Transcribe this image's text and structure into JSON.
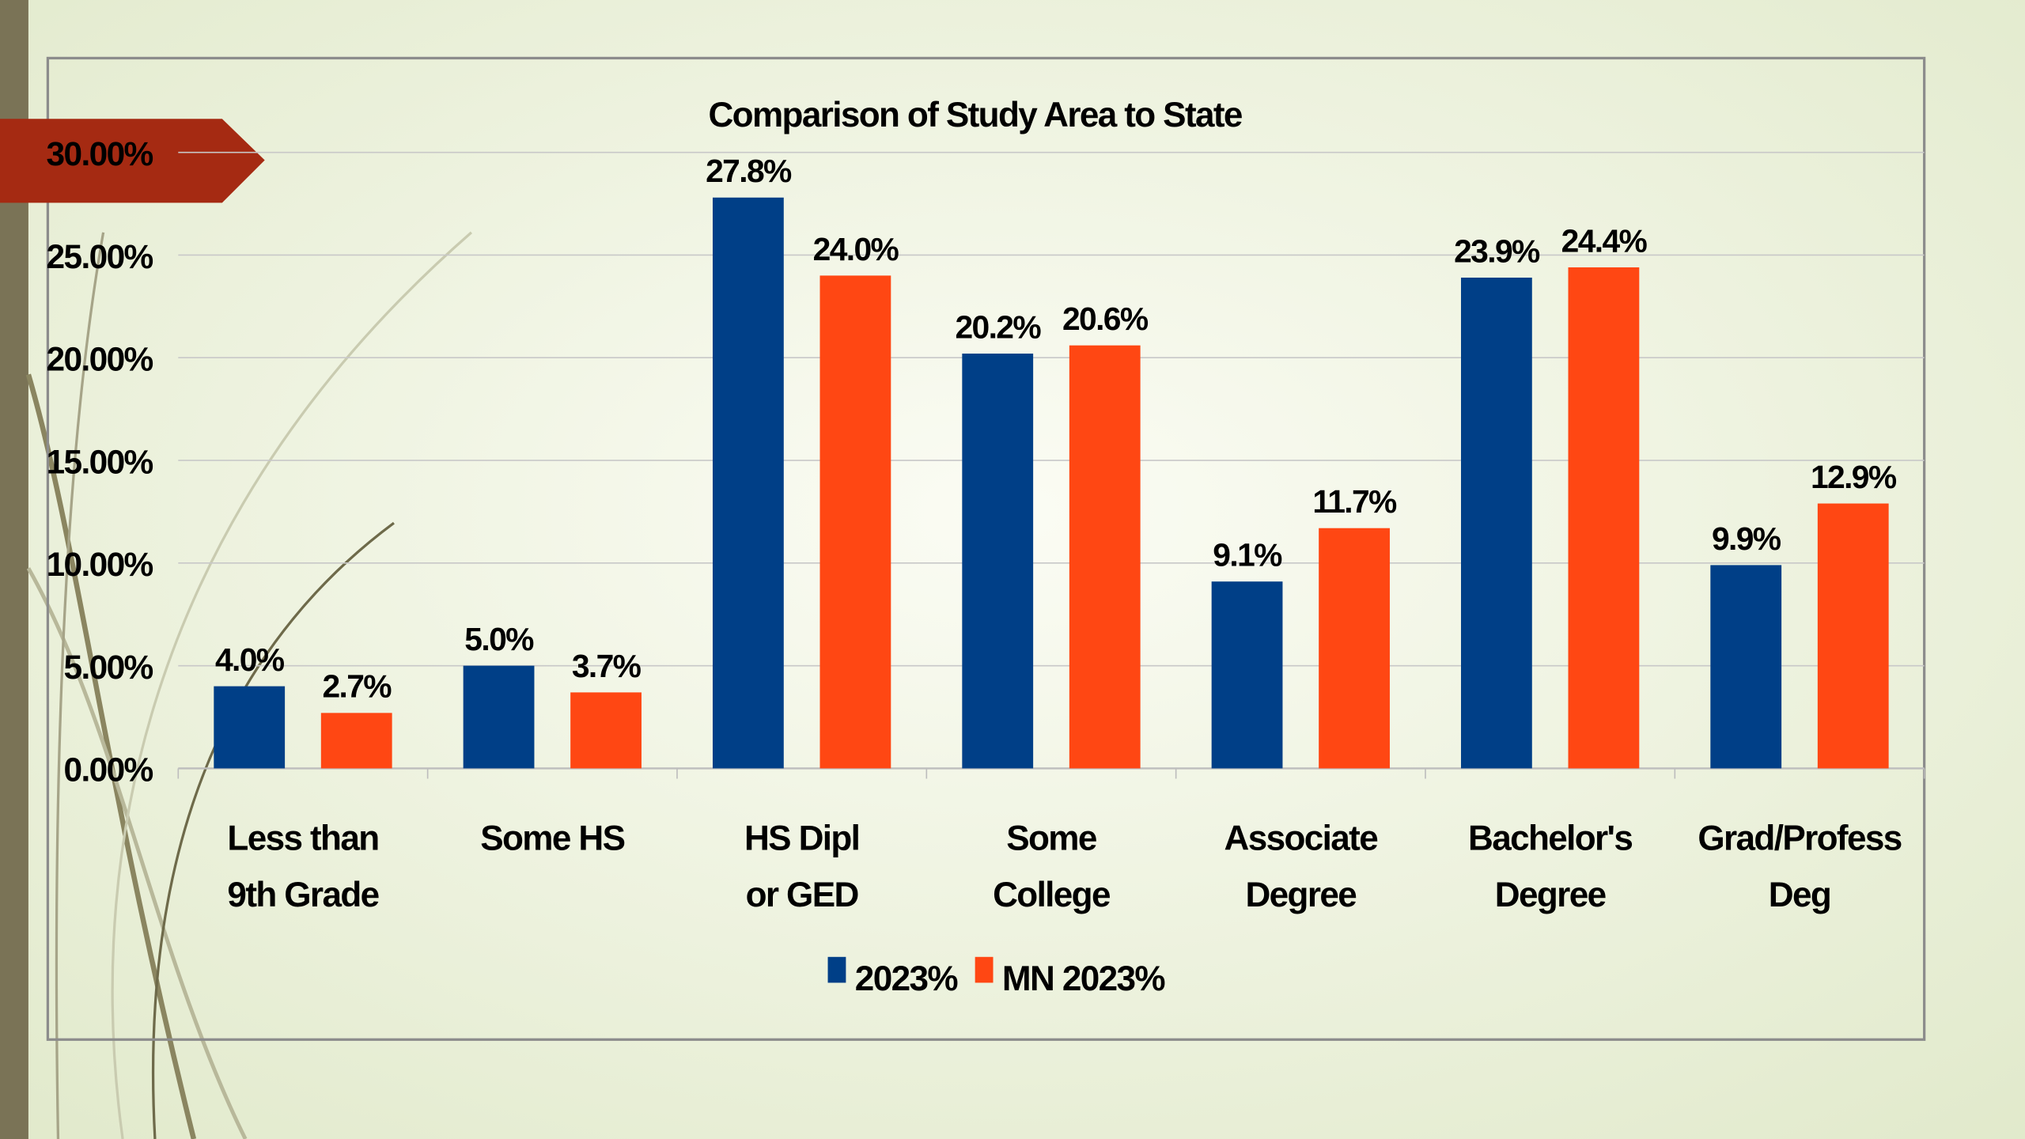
{
  "chart_data": {
    "type": "bar",
    "title": "Comparison of Study Area to State",
    "categories": [
      [
        "Less than",
        "9th Grade"
      ],
      [
        "Some HS"
      ],
      [
        "HS Dipl",
        "or GED"
      ],
      [
        "Some",
        "College"
      ],
      [
        "Associate",
        "Degree"
      ],
      [
        "Bachelor's",
        "Degree"
      ],
      [
        "Grad/Profess",
        "Deg"
      ]
    ],
    "series": [
      {
        "name": "2023%",
        "color": "#003f87",
        "values": [
          4.0,
          5.0,
          27.8,
          20.2,
          9.1,
          23.9,
          9.9
        ],
        "value_labels": [
          "4.0%",
          "5.0%",
          "27.8%",
          "20.2%",
          "9.1%",
          "23.9%",
          "9.9%"
        ]
      },
      {
        "name": "MN 2023%",
        "color": "#ff4713",
        "values": [
          2.7,
          3.7,
          24.0,
          20.6,
          11.7,
          24.4,
          12.9
        ],
        "value_labels": [
          "2.7%",
          "3.7%",
          "24.0%",
          "20.6%",
          "11.7%",
          "24.4%",
          "12.9%"
        ]
      }
    ],
    "ylim": [
      0,
      30
    ],
    "yticks": [
      {
        "value": 0,
        "label": "0.00%"
      },
      {
        "value": 5,
        "label": "5.00%"
      },
      {
        "value": 10,
        "label": "10.00%"
      },
      {
        "value": 15,
        "label": "15.00%"
      },
      {
        "value": 20,
        "label": "20.00%"
      },
      {
        "value": 25,
        "label": "25.00%"
      },
      {
        "value": 30,
        "label": "30.00%"
      }
    ],
    "grid": true,
    "legend": "bottom"
  }
}
